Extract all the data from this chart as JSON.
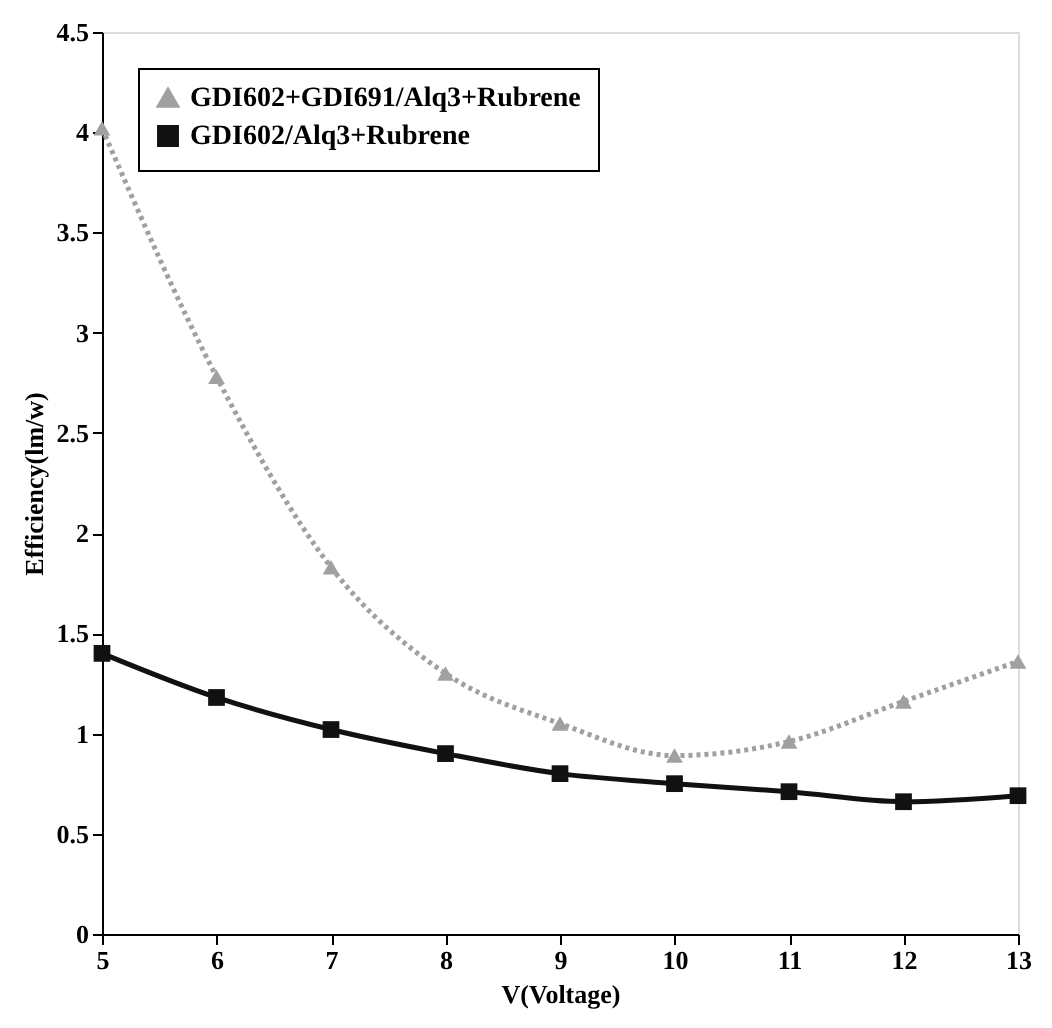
{
  "chart_data": {
    "type": "line",
    "xlabel": "V(Voltage)",
    "ylabel": "Efficiency(lm/w)",
    "x": [
      5,
      6,
      7,
      8,
      9,
      10,
      11,
      12,
      13
    ],
    "series": [
      {
        "name": "GDI602+GDI691/Alq3+Rubrene",
        "color": "#a0a0a0",
        "marker": "triangle",
        "line_style": "dotted",
        "values": [
          4.02,
          2.78,
          1.83,
          1.3,
          1.05,
          0.89,
          0.96,
          1.16,
          1.36
        ]
      },
      {
        "name": "GDI602/Alq3+Rubrene",
        "color": "#111111",
        "marker": "square",
        "line_style": "solid",
        "values": [
          1.4,
          1.18,
          1.02,
          0.9,
          0.8,
          0.75,
          0.71,
          0.66,
          0.69
        ]
      }
    ],
    "xlim": [
      5,
      13
    ],
    "xticks": [
      5,
      6,
      7,
      8,
      9,
      10,
      11,
      12,
      13
    ],
    "ylim": [
      0,
      4.5
    ],
    "yticks": [
      0,
      0.5,
      1,
      1.5,
      2,
      2.5,
      3,
      3.5,
      4,
      4.5
    ],
    "grid": false,
    "legend": "top left"
  }
}
